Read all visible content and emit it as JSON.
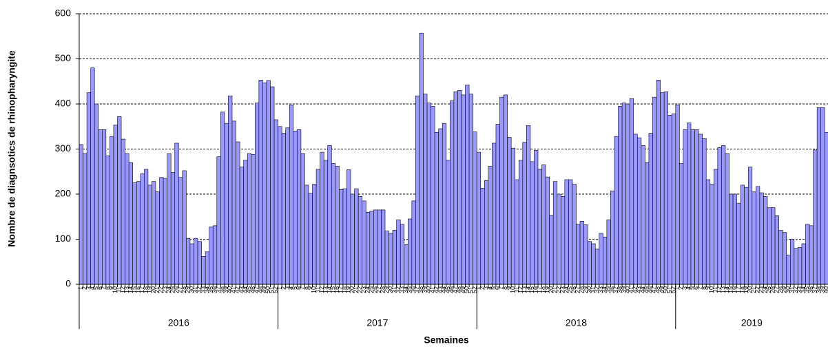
{
  "chart_data": {
    "type": "bar",
    "y_label": "Nombre de diagnsotics de rhinopharyngite",
    "x_label": "Semaines",
    "color": "#9999ff",
    "ylim": [
      0,
      600
    ],
    "yticks": [
      0,
      100,
      200,
      300,
      400,
      500,
      600
    ],
    "grid": true,
    "groups": [
      {
        "label": "2016",
        "categories": [
          1,
          2,
          3,
          4,
          5,
          6,
          7,
          8,
          9,
          10,
          11,
          12,
          13,
          14,
          15,
          16,
          17,
          18,
          19,
          20,
          21,
          22,
          23,
          24,
          25,
          26,
          27,
          28,
          29,
          30,
          31,
          32,
          33,
          34,
          35,
          36,
          37,
          38,
          39,
          40,
          41,
          42,
          43,
          44,
          45,
          46,
          47,
          48,
          49,
          50,
          51,
          52
        ],
        "values": [
          310,
          290,
          425,
          480,
          400,
          343,
          343,
          285,
          328,
          353,
          372,
          322,
          290,
          270,
          225,
          228,
          245,
          255,
          220,
          228,
          205,
          237,
          235,
          290,
          248,
          313,
          237,
          252,
          102,
          90,
          102,
          95,
          62,
          72,
          127,
          130,
          283,
          382,
          357,
          418,
          362,
          316,
          260,
          275,
          290,
          288,
          402,
          453,
          447,
          452,
          438,
          365
        ]
      },
      {
        "label": "2017",
        "categories": [
          1,
          2,
          3,
          4,
          5,
          6,
          7,
          8,
          9,
          10,
          11,
          12,
          13,
          14,
          15,
          16,
          17,
          18,
          19,
          20,
          21,
          22,
          23,
          24,
          25,
          26,
          27,
          28,
          29,
          30,
          31,
          32,
          33,
          34,
          35,
          36,
          37,
          38,
          39,
          40,
          41,
          42,
          43,
          44,
          45,
          46,
          47,
          48,
          49,
          50,
          51,
          52
        ],
        "values": [
          350,
          335,
          347,
          398,
          340,
          343,
          290,
          220,
          202,
          222,
          255,
          293,
          275,
          308,
          268,
          262,
          210,
          212,
          254,
          200,
          212,
          195,
          185,
          160,
          162,
          165,
          165,
          165,
          118,
          113,
          120,
          143,
          133,
          88,
          145,
          185,
          418,
          557,
          422,
          402,
          395,
          337,
          345,
          357,
          275,
          407,
          427,
          430,
          420,
          442,
          422,
          338
        ]
      },
      {
        "label": "2018",
        "categories": [
          1,
          2,
          3,
          4,
          5,
          6,
          7,
          8,
          9,
          10,
          11,
          12,
          13,
          14,
          15,
          16,
          17,
          18,
          19,
          20,
          21,
          22,
          23,
          24,
          25,
          26,
          27,
          28,
          29,
          30,
          31,
          32,
          33,
          34,
          35,
          36,
          37,
          38,
          39,
          40,
          41,
          42,
          43,
          44,
          45,
          46,
          47,
          48,
          49,
          50,
          51,
          52
        ],
        "values": [
          293,
          213,
          230,
          262,
          313,
          355,
          415,
          420,
          326,
          302,
          232,
          275,
          315,
          352,
          272,
          297,
          255,
          265,
          238,
          153,
          228,
          200,
          195,
          232,
          232,
          222,
          133,
          140,
          132,
          95,
          90,
          78,
          113,
          105,
          143,
          207,
          328,
          395,
          402,
          400,
          412,
          333,
          325,
          308,
          270,
          335,
          415,
          453,
          425,
          427,
          375,
          378
        ]
      },
      {
        "label": "2019",
        "categories": [
          1,
          2,
          3,
          4,
          5,
          6,
          7,
          8,
          9,
          10,
          11,
          12,
          13,
          14,
          15,
          16,
          17,
          18,
          19,
          20,
          21,
          22,
          23,
          24,
          25,
          26,
          27,
          28,
          29,
          30,
          31,
          32,
          33,
          34,
          35,
          36,
          37,
          38,
          39,
          40
        ],
        "values": [
          398,
          268,
          343,
          358,
          343,
          343,
          333,
          323,
          232,
          222,
          255,
          303,
          308,
          290,
          200,
          200,
          180,
          220,
          215,
          260,
          205,
          217,
          203,
          195,
          170,
          170,
          152,
          120,
          115,
          65,
          100,
          80,
          82,
          90,
          133,
          130,
          298,
          392,
          392,
          337
        ]
      }
    ]
  }
}
